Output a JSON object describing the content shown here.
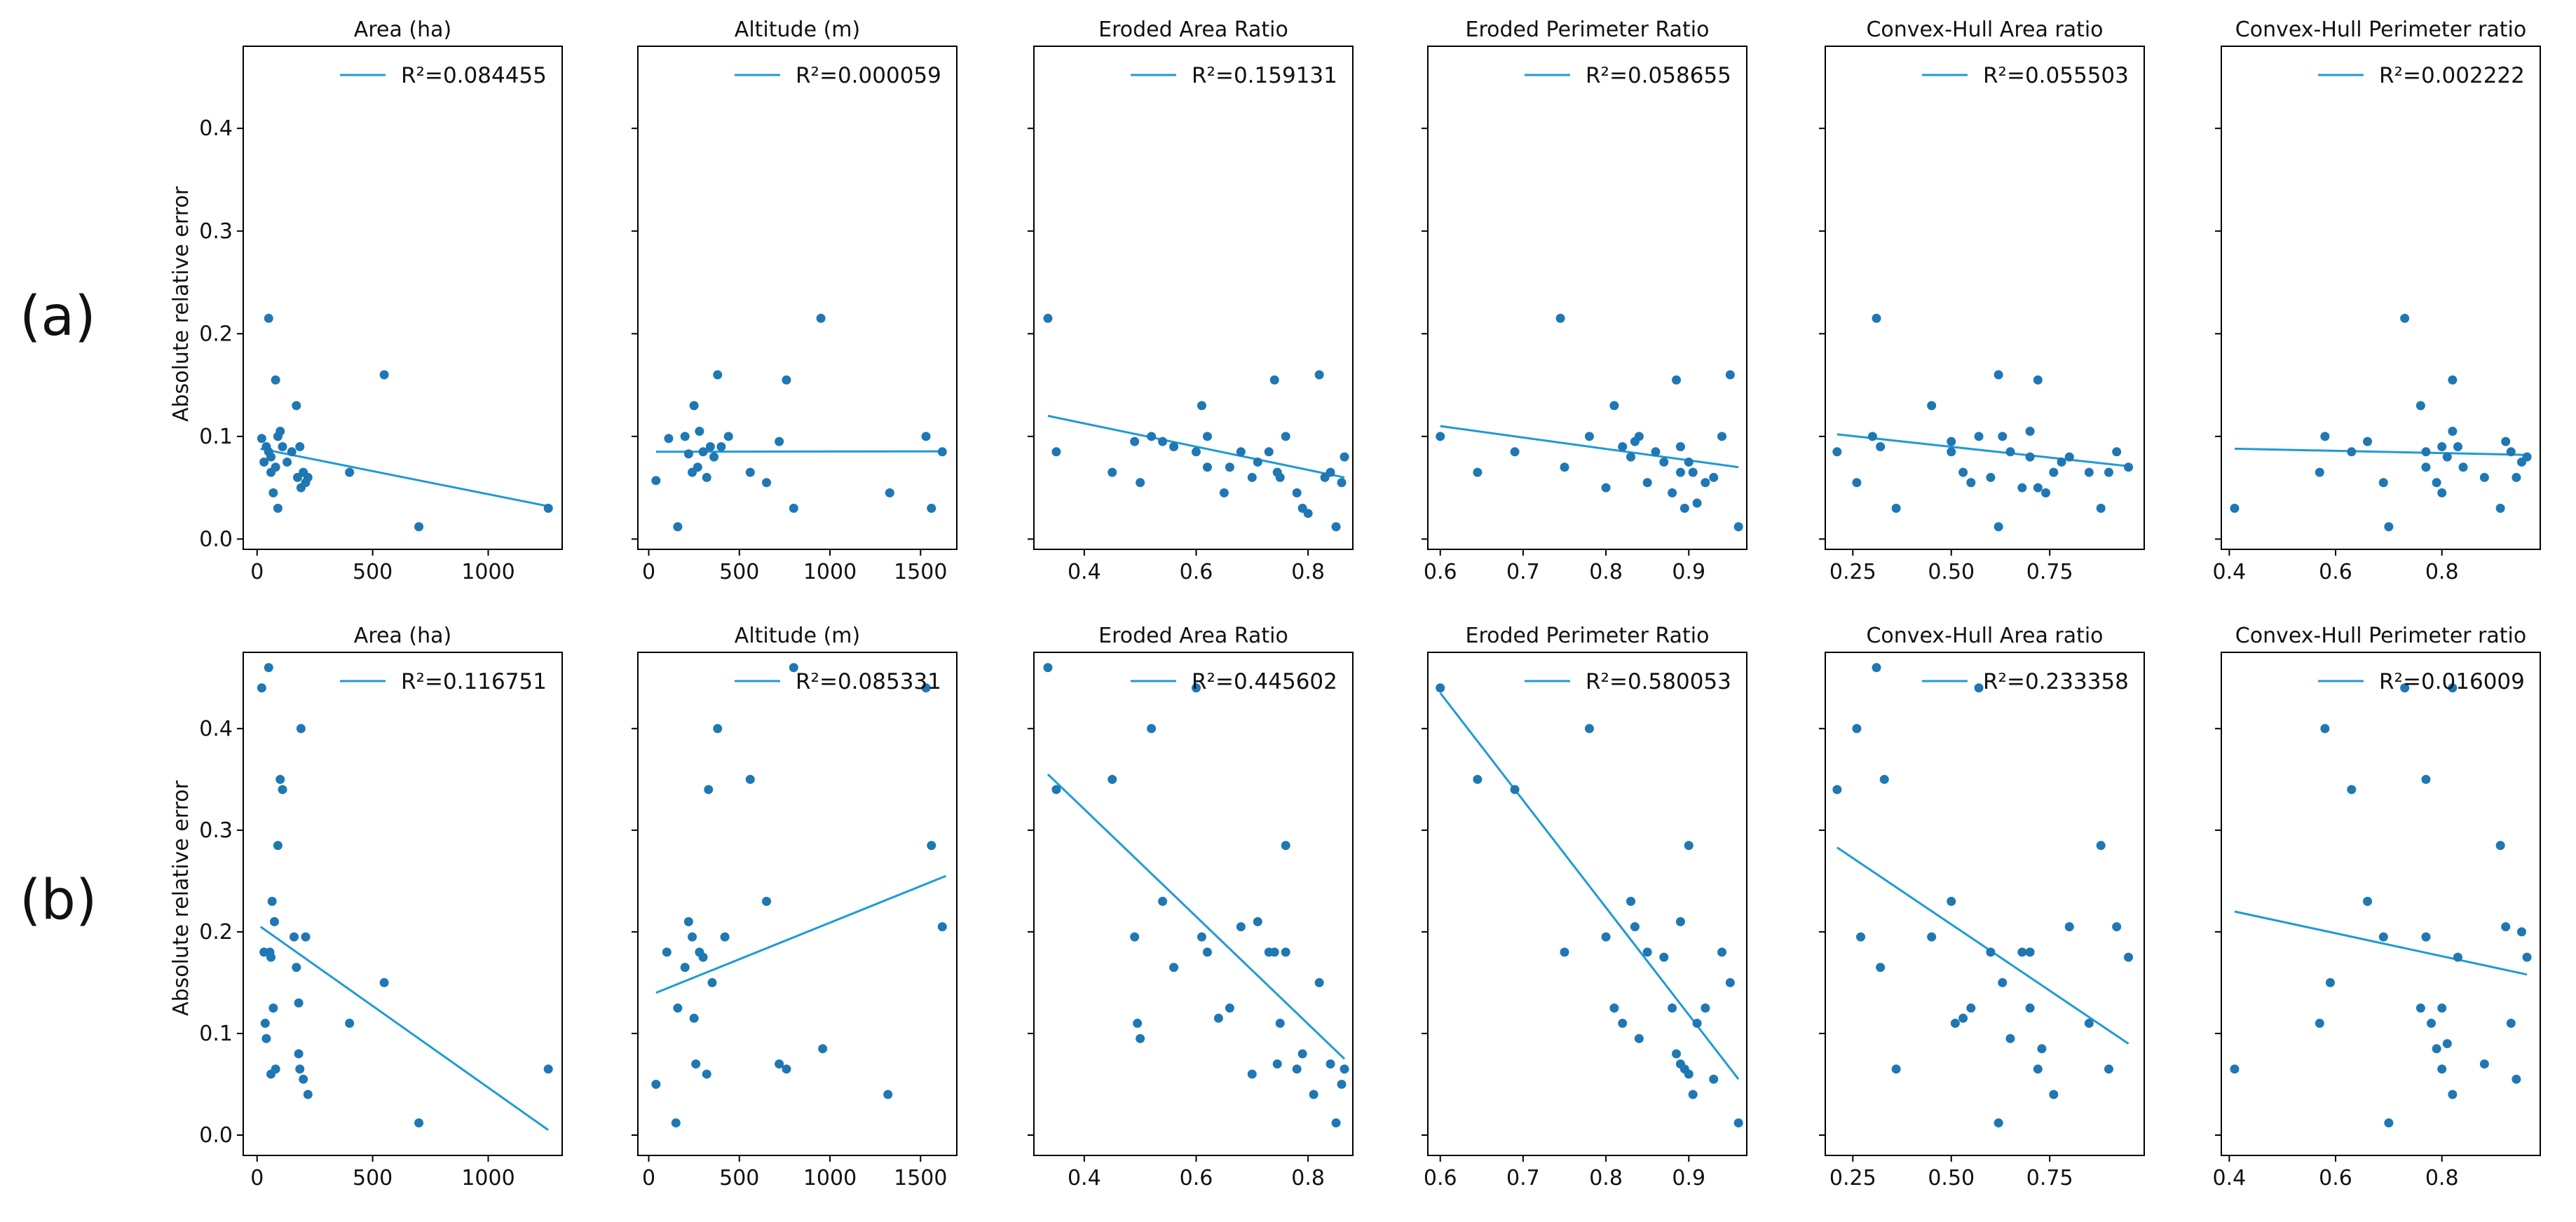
{
  "figure": {
    "row_labels": [
      "(a)",
      "(b)"
    ],
    "ylabel": "Absolute relative error"
  },
  "colors": {
    "marker": "#1f77b4",
    "line": "#1f9ad6",
    "frame": "#000000",
    "text": "#111111"
  },
  "chart_data": [
    {
      "type": "scatter",
      "row": "a",
      "title": "Area (ha)",
      "r2_label": "R²=0.084455",
      "xlim": [
        -60,
        1320
      ],
      "ylim": [
        -0.01,
        0.48
      ],
      "xticks": [
        0,
        500,
        1000
      ],
      "xtick_labels": [
        "0",
        "500",
        "1000"
      ],
      "yticks": [
        0,
        0.1,
        0.2,
        0.3,
        0.4
      ],
      "ytick_labels": [
        "0.0",
        "0.1",
        "0.2",
        "0.3",
        "0.4"
      ],
      "x": [
        20,
        30,
        40,
        50,
        50,
        60,
        60,
        70,
        80,
        80,
        90,
        90,
        100,
        110,
        130,
        150,
        170,
        175,
        185,
        190,
        200,
        210,
        220,
        400,
        550,
        700,
        1260
      ],
      "y": [
        0.098,
        0.075,
        0.09,
        0.085,
        0.215,
        0.065,
        0.08,
        0.045,
        0.155,
        0.07,
        0.1,
        0.03,
        0.105,
        0.09,
        0.075,
        0.085,
        0.13,
        0.06,
        0.09,
        0.05,
        0.065,
        0.055,
        0.06,
        0.065,
        0.16,
        0.012,
        0.03
      ],
      "fit": {
        "x": [
          15,
          1260
        ],
        "y": [
          0.088,
          0.032
        ]
      }
    },
    {
      "type": "scatter",
      "row": "a",
      "title": "Altitude (m)",
      "r2_label": "R²=0.000059",
      "xlim": [
        -60,
        1700
      ],
      "ylim": [
        -0.01,
        0.48
      ],
      "xticks": [
        0,
        500,
        1000,
        1500
      ],
      "xtick_labels": [
        "0",
        "500",
        "1000",
        "1500"
      ],
      "yticks": [
        0,
        0.1,
        0.2,
        0.3,
        0.4
      ],
      "ytick_labels": [],
      "x": [
        40,
        110,
        160,
        200,
        220,
        240,
        250,
        270,
        280,
        300,
        320,
        340,
        360,
        380,
        400,
        440,
        560,
        650,
        720,
        760,
        800,
        950,
        1330,
        1530,
        1560,
        1620
      ],
      "y": [
        0.057,
        0.098,
        0.012,
        0.1,
        0.083,
        0.065,
        0.13,
        0.07,
        0.105,
        0.085,
        0.06,
        0.09,
        0.08,
        0.16,
        0.09,
        0.1,
        0.065,
        0.055,
        0.095,
        0.155,
        0.03,
        0.215,
        0.045,
        0.1,
        0.03,
        0.085
      ],
      "fit": {
        "x": [
          40,
          1640
        ],
        "y": [
          0.085,
          0.0855
        ]
      }
    },
    {
      "type": "scatter",
      "row": "a",
      "title": "Eroded Area Ratio",
      "r2_label": "R²=0.159131",
      "xlim": [
        0.31,
        0.88
      ],
      "ylim": [
        -0.01,
        0.48
      ],
      "xticks": [
        0.4,
        0.6,
        0.8
      ],
      "xtick_labels": [
        "0.4",
        "0.6",
        "0.8"
      ],
      "yticks": [
        0,
        0.1,
        0.2,
        0.3,
        0.4
      ],
      "ytick_labels": [],
      "x": [
        0.335,
        0.35,
        0.45,
        0.49,
        0.5,
        0.52,
        0.54,
        0.56,
        0.6,
        0.61,
        0.62,
        0.62,
        0.65,
        0.66,
        0.68,
        0.7,
        0.71,
        0.73,
        0.74,
        0.745,
        0.75,
        0.76,
        0.78,
        0.79,
        0.8,
        0.82,
        0.83,
        0.84,
        0.85,
        0.86,
        0.865
      ],
      "y": [
        0.215,
        0.085,
        0.065,
        0.095,
        0.055,
        0.1,
        0.095,
        0.09,
        0.085,
        0.13,
        0.07,
        0.1,
        0.045,
        0.07,
        0.085,
        0.06,
        0.075,
        0.085,
        0.155,
        0.065,
        0.06,
        0.1,
        0.045,
        0.03,
        0.025,
        0.16,
        0.06,
        0.065,
        0.012,
        0.055,
        0.08
      ],
      "fit": {
        "x": [
          0.335,
          0.865
        ],
        "y": [
          0.12,
          0.06
        ]
      }
    },
    {
      "type": "scatter",
      "row": "a",
      "title": "Eroded Perimeter Ratio",
      "r2_label": "R²=0.058655",
      "xlim": [
        0.585,
        0.97
      ],
      "ylim": [
        -0.01,
        0.48
      ],
      "xticks": [
        0.6,
        0.7,
        0.8,
        0.9
      ],
      "xtick_labels": [
        "0.6",
        "0.7",
        "0.8",
        "0.9"
      ],
      "yticks": [
        0,
        0.1,
        0.2,
        0.3,
        0.4
      ],
      "ytick_labels": [],
      "x": [
        0.6,
        0.645,
        0.69,
        0.745,
        0.75,
        0.78,
        0.8,
        0.81,
        0.82,
        0.83,
        0.835,
        0.84,
        0.85,
        0.86,
        0.87,
        0.88,
        0.885,
        0.89,
        0.89,
        0.895,
        0.9,
        0.905,
        0.91,
        0.92,
        0.93,
        0.94,
        0.95,
        0.96
      ],
      "y": [
        0.1,
        0.065,
        0.085,
        0.215,
        0.07,
        0.1,
        0.05,
        0.13,
        0.09,
        0.08,
        0.095,
        0.1,
        0.055,
        0.085,
        0.075,
        0.045,
        0.155,
        0.09,
        0.065,
        0.03,
        0.075,
        0.065,
        0.035,
        0.055,
        0.06,
        0.1,
        0.16,
        0.012
      ],
      "fit": {
        "x": [
          0.6,
          0.96
        ],
        "y": [
          0.11,
          0.07
        ]
      }
    },
    {
      "type": "scatter",
      "row": "a",
      "title": "Convex-Hull Area ratio",
      "r2_label": "R²=0.055503",
      "xlim": [
        0.18,
        0.99
      ],
      "ylim": [
        -0.01,
        0.48
      ],
      "xticks": [
        0.25,
        0.5,
        0.75
      ],
      "xtick_labels": [
        "0.25",
        "0.50",
        "0.75"
      ],
      "yticks": [
        0,
        0.1,
        0.2,
        0.3,
        0.4
      ],
      "ytick_labels": [],
      "x": [
        0.21,
        0.26,
        0.3,
        0.31,
        0.32,
        0.36,
        0.45,
        0.5,
        0.5,
        0.53,
        0.55,
        0.57,
        0.6,
        0.62,
        0.62,
        0.63,
        0.65,
        0.68,
        0.7,
        0.7,
        0.72,
        0.72,
        0.74,
        0.76,
        0.78,
        0.8,
        0.85,
        0.88,
        0.9,
        0.92,
        0.95
      ],
      "y": [
        0.085,
        0.055,
        0.1,
        0.215,
        0.09,
        0.03,
        0.13,
        0.095,
        0.085,
        0.065,
        0.055,
        0.1,
        0.06,
        0.012,
        0.16,
        0.1,
        0.085,
        0.05,
        0.105,
        0.08,
        0.155,
        0.05,
        0.045,
        0.065,
        0.075,
        0.08,
        0.065,
        0.03,
        0.065,
        0.085,
        0.07
      ],
      "fit": {
        "x": [
          0.21,
          0.95
        ],
        "y": [
          0.102,
          0.071
        ]
      }
    },
    {
      "type": "scatter",
      "row": "a",
      "title": "Convex-Hull Perimeter ratio",
      "r2_label": "R²=0.002222",
      "xlim": [
        0.385,
        0.985
      ],
      "ylim": [
        -0.01,
        0.48
      ],
      "xticks": [
        0.4,
        0.6,
        0.8
      ],
      "xtick_labels": [
        "0.4",
        "0.6",
        "0.8"
      ],
      "yticks": [
        0,
        0.1,
        0.2,
        0.3,
        0.4
      ],
      "ytick_labels": [],
      "x": [
        0.41,
        0.57,
        0.58,
        0.63,
        0.66,
        0.69,
        0.7,
        0.73,
        0.76,
        0.77,
        0.77,
        0.79,
        0.8,
        0.8,
        0.81,
        0.82,
        0.82,
        0.83,
        0.84,
        0.88,
        0.91,
        0.92,
        0.93,
        0.94,
        0.95,
        0.96
      ],
      "y": [
        0.03,
        0.065,
        0.1,
        0.085,
        0.095,
        0.055,
        0.012,
        0.215,
        0.13,
        0.085,
        0.07,
        0.055,
        0.045,
        0.09,
        0.08,
        0.155,
        0.105,
        0.09,
        0.07,
        0.06,
        0.03,
        0.095,
        0.085,
        0.06,
        0.075,
        0.08
      ],
      "fit": {
        "x": [
          0.41,
          0.96
        ],
        "y": [
          0.088,
          0.082
        ]
      }
    },
    {
      "type": "scatter",
      "row": "b",
      "title": "Area (ha)",
      "r2_label": "R²=0.116751",
      "xlim": [
        -60,
        1320
      ],
      "ylim": [
        -0.02,
        0.475
      ],
      "xticks": [
        0,
        500,
        1000
      ],
      "xtick_labels": [
        "0",
        "500",
        "1000"
      ],
      "yticks": [
        0,
        0.1,
        0.2,
        0.3,
        0.4
      ],
      "ytick_labels": [
        "0.0",
        "0.1",
        "0.2",
        "0.3",
        "0.4"
      ],
      "x": [
        20,
        30,
        35,
        40,
        50,
        55,
        60,
        60,
        65,
        70,
        75,
        80,
        90,
        100,
        110,
        160,
        170,
        180,
        180,
        185,
        190,
        200,
        210,
        220,
        400,
        550,
        700,
        1260
      ],
      "y": [
        0.44,
        0.18,
        0.11,
        0.095,
        0.46,
        0.18,
        0.175,
        0.06,
        0.23,
        0.125,
        0.21,
        0.065,
        0.285,
        0.35,
        0.34,
        0.195,
        0.165,
        0.13,
        0.08,
        0.065,
        0.4,
        0.055,
        0.195,
        0.04,
        0.11,
        0.15,
        0.012,
        0.065
      ],
      "fit": {
        "x": [
          15,
          1260
        ],
        "y": [
          0.205,
          0.005
        ]
      }
    },
    {
      "type": "scatter",
      "row": "b",
      "title": "Altitude (m)",
      "r2_label": "R²=0.085331",
      "xlim": [
        -60,
        1700
      ],
      "ylim": [
        -0.02,
        0.475
      ],
      "xticks": [
        0,
        500,
        1000,
        1500
      ],
      "xtick_labels": [
        "0",
        "500",
        "1000",
        "1500"
      ],
      "yticks": [
        0,
        0.1,
        0.2,
        0.3,
        0.4
      ],
      "ytick_labels": [],
      "x": [
        40,
        100,
        150,
        160,
        200,
        220,
        240,
        250,
        260,
        280,
        300,
        320,
        330,
        350,
        380,
        420,
        560,
        650,
        720,
        760,
        800,
        960,
        1320,
        1530,
        1560,
        1620
      ],
      "y": [
        0.05,
        0.18,
        0.012,
        0.125,
        0.165,
        0.21,
        0.195,
        0.115,
        0.07,
        0.18,
        0.175,
        0.06,
        0.34,
        0.15,
        0.4,
        0.195,
        0.35,
        0.23,
        0.07,
        0.065,
        0.46,
        0.085,
        0.04,
        0.44,
        0.285,
        0.205
      ],
      "fit": {
        "x": [
          40,
          1640
        ],
        "y": [
          0.14,
          0.255
        ]
      }
    },
    {
      "type": "scatter",
      "row": "b",
      "title": "Eroded Area Ratio",
      "r2_label": "R²=0.445602",
      "xlim": [
        0.31,
        0.88
      ],
      "ylim": [
        -0.02,
        0.475
      ],
      "xticks": [
        0.4,
        0.6,
        0.8
      ],
      "xtick_labels": [
        "0.4",
        "0.6",
        "0.8"
      ],
      "yticks": [
        0,
        0.1,
        0.2,
        0.3,
        0.4
      ],
      "ytick_labels": [],
      "x": [
        0.335,
        0.35,
        0.45,
        0.49,
        0.495,
        0.5,
        0.52,
        0.54,
        0.56,
        0.6,
        0.61,
        0.62,
        0.64,
        0.66,
        0.68,
        0.7,
        0.71,
        0.73,
        0.74,
        0.745,
        0.75,
        0.76,
        0.76,
        0.78,
        0.79,
        0.81,
        0.82,
        0.84,
        0.85,
        0.86,
        0.865
      ],
      "y": [
        0.46,
        0.34,
        0.35,
        0.195,
        0.11,
        0.095,
        0.4,
        0.23,
        0.165,
        0.44,
        0.195,
        0.18,
        0.115,
        0.125,
        0.205,
        0.06,
        0.21,
        0.18,
        0.18,
        0.07,
        0.11,
        0.285,
        0.18,
        0.065,
        0.08,
        0.04,
        0.15,
        0.07,
        0.012,
        0.05,
        0.065
      ],
      "fit": {
        "x": [
          0.335,
          0.865
        ],
        "y": [
          0.355,
          0.075
        ]
      }
    },
    {
      "type": "scatter",
      "row": "b",
      "title": "Eroded Perimeter Ratio",
      "r2_label": "R²=0.580053",
      "xlim": [
        0.585,
        0.97
      ],
      "ylim": [
        -0.02,
        0.475
      ],
      "xticks": [
        0.6,
        0.7,
        0.8,
        0.9
      ],
      "xtick_labels": [
        "0.6",
        "0.7",
        "0.8",
        "0.9"
      ],
      "yticks": [
        0,
        0.1,
        0.2,
        0.3,
        0.4
      ],
      "ytick_labels": [],
      "x": [
        0.6,
        0.645,
        0.69,
        0.75,
        0.78,
        0.8,
        0.81,
        0.82,
        0.83,
        0.835,
        0.84,
        0.85,
        0.87,
        0.88,
        0.885,
        0.89,
        0.89,
        0.895,
        0.9,
        0.9,
        0.905,
        0.91,
        0.92,
        0.93,
        0.94,
        0.95,
        0.96
      ],
      "y": [
        0.44,
        0.35,
        0.34,
        0.18,
        0.4,
        0.195,
        0.125,
        0.11,
        0.23,
        0.205,
        0.095,
        0.18,
        0.175,
        0.125,
        0.08,
        0.21,
        0.07,
        0.065,
        0.285,
        0.06,
        0.04,
        0.11,
        0.125,
        0.055,
        0.18,
        0.15,
        0.012
      ],
      "fit": {
        "x": [
          0.6,
          0.96
        ],
        "y": [
          0.435,
          0.055
        ]
      }
    },
    {
      "type": "scatter",
      "row": "b",
      "title": "Convex-Hull Area ratio",
      "r2_label": "R²=0.233358",
      "xlim": [
        0.18,
        0.99
      ],
      "ylim": [
        -0.02,
        0.475
      ],
      "xticks": [
        0.25,
        0.5,
        0.75
      ],
      "xtick_labels": [
        "0.25",
        "0.50",
        "0.75"
      ],
      "yticks": [
        0,
        0.1,
        0.2,
        0.3,
        0.4
      ],
      "ytick_labels": [],
      "x": [
        0.21,
        0.26,
        0.27,
        0.31,
        0.32,
        0.33,
        0.36,
        0.45,
        0.5,
        0.51,
        0.53,
        0.55,
        0.57,
        0.6,
        0.62,
        0.63,
        0.65,
        0.68,
        0.7,
        0.7,
        0.72,
        0.73,
        0.76,
        0.8,
        0.85,
        0.88,
        0.9,
        0.92,
        0.95
      ],
      "y": [
        0.34,
        0.4,
        0.195,
        0.46,
        0.165,
        0.35,
        0.065,
        0.195,
        0.23,
        0.11,
        0.115,
        0.125,
        0.44,
        0.18,
        0.012,
        0.15,
        0.095,
        0.18,
        0.125,
        0.18,
        0.065,
        0.085,
        0.04,
        0.205,
        0.11,
        0.285,
        0.065,
        0.205,
        0.175
      ],
      "fit": {
        "x": [
          0.21,
          0.95
        ],
        "y": [
          0.283,
          0.09
        ]
      }
    },
    {
      "type": "scatter",
      "row": "b",
      "title": "Convex-Hull Perimeter ratio",
      "r2_label": "R²=0.016009",
      "xlim": [
        0.385,
        0.985
      ],
      "ylim": [
        -0.02,
        0.475
      ],
      "xticks": [
        0.4,
        0.6,
        0.8
      ],
      "xtick_labels": [
        "0.4",
        "0.6",
        "0.8"
      ],
      "yticks": [
        0,
        0.1,
        0.2,
        0.3,
        0.4
      ],
      "ytick_labels": [],
      "x": [
        0.41,
        0.57,
        0.58,
        0.59,
        0.63,
        0.66,
        0.69,
        0.7,
        0.73,
        0.76,
        0.77,
        0.77,
        0.78,
        0.79,
        0.8,
        0.8,
        0.81,
        0.82,
        0.82,
        0.83,
        0.88,
        0.91,
        0.92,
        0.93,
        0.94,
        0.95,
        0.96
      ],
      "y": [
        0.065,
        0.11,
        0.4,
        0.15,
        0.34,
        0.23,
        0.195,
        0.012,
        0.44,
        0.125,
        0.35,
        0.195,
        0.11,
        0.085,
        0.125,
        0.065,
        0.09,
        0.04,
        0.44,
        0.175,
        0.07,
        0.285,
        0.205,
        0.11,
        0.055,
        0.2,
        0.175
      ],
      "fit": {
        "x": [
          0.41,
          0.96
        ],
        "y": [
          0.22,
          0.158
        ]
      }
    }
  ]
}
